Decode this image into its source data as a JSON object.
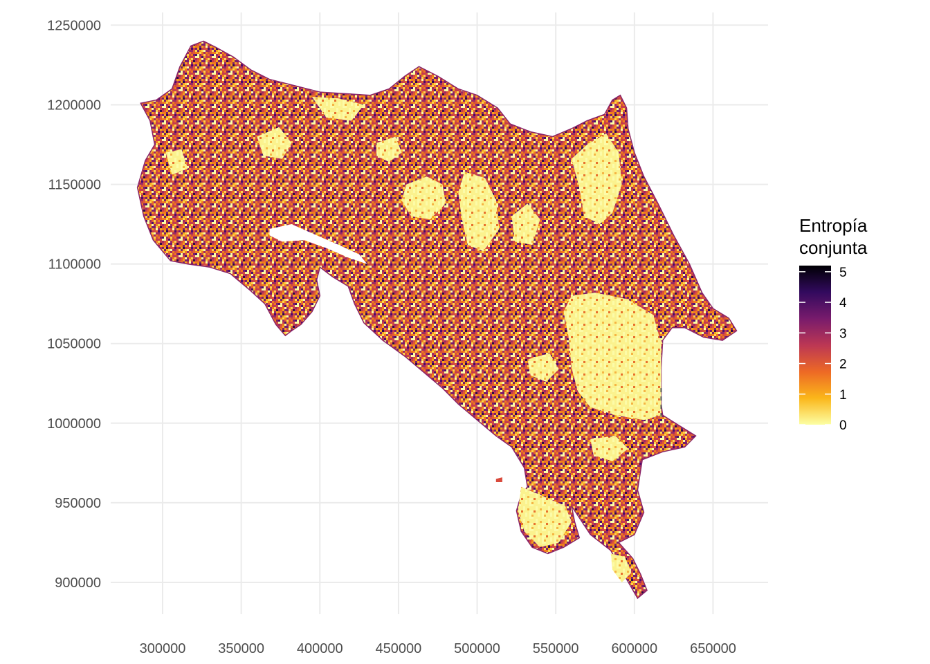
{
  "chart_data": {
    "type": "heatmap",
    "title": "",
    "xlabel": "",
    "ylabel": "",
    "x_ticks": [
      "300000",
      "350000",
      "400000",
      "450000",
      "500000",
      "550000",
      "600000",
      "650000"
    ],
    "y_ticks": [
      "1250000",
      "1200000",
      "1150000",
      "1100000",
      "1050000",
      "1000000",
      "950000",
      "900000"
    ],
    "xlim": [
      267000,
      685000
    ],
    "ylim": [
      880000,
      1258000
    ],
    "grid": true,
    "legend": {
      "title_line1": "Entropía",
      "title_line2": "conjunta",
      "labels": [
        "5",
        "4",
        "3",
        "2",
        "1",
        "0"
      ],
      "range": [
        0,
        5.2
      ],
      "colors": [
        "#000004",
        "#320a5e",
        "#781b6c",
        "#bc3754",
        "#ed6925",
        "#fbb61a",
        "#fcffa4"
      ],
      "placement": "right"
    },
    "mainland_outline": [
      [
        286000,
        1201000
      ],
      [
        296000,
        1203000
      ],
      [
        306000,
        1210000
      ],
      [
        311000,
        1224000
      ],
      [
        318000,
        1237000
      ],
      [
        326000,
        1240000
      ],
      [
        334000,
        1236000
      ],
      [
        345000,
        1230000
      ],
      [
        356000,
        1222000
      ],
      [
        368000,
        1216000
      ],
      [
        384000,
        1212000
      ],
      [
        400000,
        1208000
      ],
      [
        416000,
        1207000
      ],
      [
        432000,
        1206000
      ],
      [
        444000,
        1210000
      ],
      [
        454000,
        1218000
      ],
      [
        463000,
        1224000
      ],
      [
        475000,
        1218000
      ],
      [
        488000,
        1210000
      ],
      [
        500000,
        1206000
      ],
      [
        513000,
        1198000
      ],
      [
        521000,
        1188000
      ],
      [
        534000,
        1183000
      ],
      [
        548000,
        1180000
      ],
      [
        560000,
        1185000
      ],
      [
        570000,
        1190000
      ],
      [
        581000,
        1194000
      ],
      [
        586000,
        1203000
      ],
      [
        591000,
        1206000
      ],
      [
        595000,
        1198000
      ],
      [
        596000,
        1185000
      ],
      [
        600000,
        1170000
      ],
      [
        606000,
        1155000
      ],
      [
        615000,
        1138000
      ],
      [
        625000,
        1118000
      ],
      [
        635000,
        1100000
      ],
      [
        643000,
        1082000
      ],
      [
        650000,
        1072000
      ],
      [
        660000,
        1066000
      ],
      [
        665000,
        1058000
      ],
      [
        656000,
        1052000
      ],
      [
        644000,
        1054000
      ],
      [
        632000,
        1060000
      ],
      [
        624000,
        1060000
      ],
      [
        618000,
        1052000
      ],
      [
        617000,
        1035000
      ],
      [
        617000,
        1012000
      ],
      [
        618000,
        1005000
      ],
      [
        626000,
        1000000
      ],
      [
        639000,
        992000
      ],
      [
        632000,
        985000
      ],
      [
        618000,
        982000
      ],
      [
        605000,
        977000
      ],
      [
        602000,
        958000
      ],
      [
        606000,
        944000
      ],
      [
        600000,
        930000
      ],
      [
        590000,
        925000
      ],
      [
        599000,
        915000
      ],
      [
        604000,
        905000
      ],
      [
        608000,
        895000
      ],
      [
        602000,
        890000
      ],
      [
        595000,
        902000
      ],
      [
        585000,
        920000
      ],
      [
        572000,
        930000
      ],
      [
        560000,
        948000
      ],
      [
        562000,
        938000
      ],
      [
        565000,
        928000
      ],
      [
        555000,
        922000
      ],
      [
        545000,
        918000
      ],
      [
        535000,
        922000
      ],
      [
        528000,
        932000
      ],
      [
        525000,
        945000
      ],
      [
        528000,
        955000
      ],
      [
        532000,
        960000
      ],
      [
        530000,
        972000
      ],
      [
        522000,
        985000
      ],
      [
        512000,
        992000
      ],
      [
        500000,
        1002000
      ],
      [
        488000,
        1012000
      ],
      [
        478000,
        1022000
      ],
      [
        466000,
        1032000
      ],
      [
        454000,
        1042000
      ],
      [
        440000,
        1052000
      ],
      [
        428000,
        1063000
      ],
      [
        422000,
        1075000
      ],
      [
        418000,
        1086000
      ],
      [
        408000,
        1092000
      ],
      [
        400000,
        1098000
      ],
      [
        398000,
        1090000
      ],
      [
        400000,
        1080000
      ],
      [
        395000,
        1070000
      ],
      [
        388000,
        1062000
      ],
      [
        382000,
        1058000
      ],
      [
        378000,
        1055000
      ],
      [
        372000,
        1062000
      ],
      [
        365000,
        1075000
      ],
      [
        355000,
        1084000
      ],
      [
        343000,
        1094000
      ],
      [
        330000,
        1098000
      ],
      [
        316000,
        1100000
      ],
      [
        305000,
        1102000
      ],
      [
        294000,
        1115000
      ],
      [
        288000,
        1130000
      ],
      [
        284000,
        1148000
      ],
      [
        289000,
        1165000
      ],
      [
        295000,
        1175000
      ],
      [
        292000,
        1190000
      ],
      [
        286000,
        1201000
      ]
    ],
    "gulf_outline": [
      [
        368000,
        1122000
      ],
      [
        382000,
        1125000
      ],
      [
        398000,
        1118000
      ],
      [
        412000,
        1112000
      ],
      [
        425000,
        1106000
      ],
      [
        430000,
        1100000
      ],
      [
        418000,
        1104000
      ],
      [
        404000,
        1110000
      ],
      [
        390000,
        1115000
      ],
      [
        376000,
        1114000
      ],
      [
        368000,
        1118000
      ],
      [
        368000,
        1122000
      ]
    ],
    "islands": [
      [
        [
          512000,
          965000
        ],
        [
          516000,
          966000
        ],
        [
          516000,
          963000
        ],
        [
          512000,
          963000
        ]
      ],
      [
        [
          328000,
          1150000
        ],
        [
          331000,
          1150000
        ],
        [
          331000,
          1148000
        ],
        [
          328000,
          1148000
        ]
      ]
    ],
    "low_entropy_zones": [
      [
        [
          560000,
          1080000
        ],
        [
          575000,
          1082000
        ],
        [
          595000,
          1078000
        ],
        [
          612000,
          1068000
        ],
        [
          617000,
          1050000
        ],
        [
          617000,
          1005000
        ],
        [
          606000,
          1002000
        ],
        [
          588000,
          1005000
        ],
        [
          572000,
          1010000
        ],
        [
          564000,
          1020000
        ],
        [
          560000,
          1035000
        ],
        [
          558000,
          1055000
        ],
        [
          555000,
          1070000
        ]
      ],
      [
        [
          585000,
          1045000
        ],
        [
          600000,
          1042000
        ],
        [
          612000,
          1035000
        ],
        [
          614000,
          1015000
        ],
        [
          604000,
          1010000
        ],
        [
          594000,
          1018000
        ],
        [
          588000,
          1030000
        ]
      ],
      [
        [
          528000,
          960000
        ],
        [
          540000,
          955000
        ],
        [
          556000,
          948000
        ],
        [
          560000,
          938000
        ],
        [
          552000,
          925000
        ],
        [
          540000,
          922000
        ],
        [
          530000,
          932000
        ],
        [
          526000,
          945000
        ]
      ],
      [
        [
          492000,
          1158000
        ],
        [
          505000,
          1154000
        ],
        [
          512000,
          1140000
        ],
        [
          514000,
          1122000
        ],
        [
          504000,
          1108000
        ],
        [
          494000,
          1112000
        ],
        [
          490000,
          1130000
        ],
        [
          488000,
          1145000
        ]
      ],
      [
        [
          560000,
          1166000
        ],
        [
          570000,
          1175000
        ],
        [
          582000,
          1182000
        ],
        [
          590000,
          1170000
        ],
        [
          592000,
          1150000
        ],
        [
          586000,
          1132000
        ],
        [
          578000,
          1125000
        ],
        [
          568000,
          1130000
        ],
        [
          565000,
          1148000
        ]
      ],
      [
        [
          455000,
          1150000
        ],
        [
          468000,
          1155000
        ],
        [
          478000,
          1150000
        ],
        [
          480000,
          1138000
        ],
        [
          470000,
          1128000
        ],
        [
          458000,
          1130000
        ],
        [
          452000,
          1140000
        ]
      ],
      [
        [
          522000,
          1130000
        ],
        [
          532000,
          1138000
        ],
        [
          540000,
          1128000
        ],
        [
          535000,
          1112000
        ],
        [
          524000,
          1114000
        ]
      ],
      [
        [
          360000,
          1180000
        ],
        [
          374000,
          1186000
        ],
        [
          382000,
          1176000
        ],
        [
          376000,
          1166000
        ],
        [
          364000,
          1168000
        ]
      ],
      [
        [
          395000,
          1205000
        ],
        [
          412000,
          1204000
        ],
        [
          428000,
          1200000
        ],
        [
          420000,
          1190000
        ],
        [
          404000,
          1192000
        ]
      ],
      [
        [
          302000,
          1170000
        ],
        [
          312000,
          1172000
        ],
        [
          316000,
          1160000
        ],
        [
          306000,
          1156000
        ]
      ],
      [
        [
          532000,
          1040000
        ],
        [
          546000,
          1044000
        ],
        [
          552000,
          1034000
        ],
        [
          544000,
          1026000
        ],
        [
          534000,
          1030000
        ]
      ],
      [
        [
          572000,
          990000
        ],
        [
          588000,
          992000
        ],
        [
          596000,
          984000
        ],
        [
          586000,
          976000
        ],
        [
          574000,
          980000
        ]
      ],
      [
        [
          585000,
          918000
        ],
        [
          594000,
          916000
        ],
        [
          598000,
          906000
        ],
        [
          592000,
          900000
        ],
        [
          586000,
          908000
        ]
      ],
      [
        [
          436000,
          1176000
        ],
        [
          448000,
          1180000
        ],
        [
          452000,
          1170000
        ],
        [
          444000,
          1164000
        ],
        [
          436000,
          1168000
        ]
      ],
      [
        [
          602000,
          1060000
        ],
        [
          614000,
          1058000
        ],
        [
          618000,
          1050000
        ],
        [
          608000,
          1048000
        ]
      ]
    ],
    "dashed_segment": [
      [
        617000,
        1022000
      ],
      [
        617000,
        1004000
      ]
    ]
  }
}
